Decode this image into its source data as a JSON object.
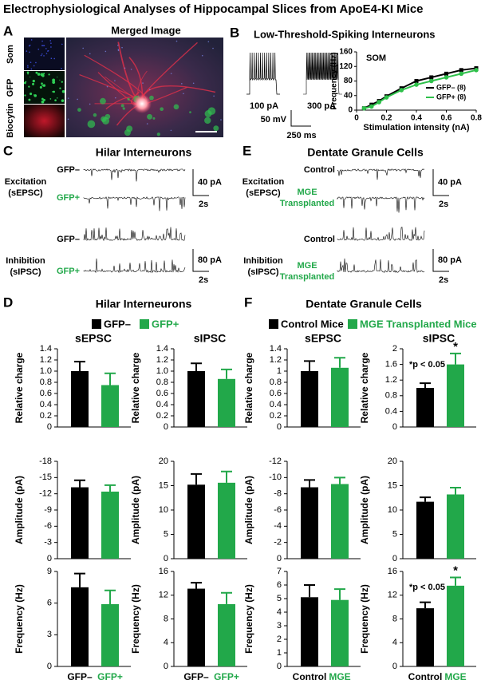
{
  "title": "Electrophysiological Analyses of Hippocampal Slices from ApoE4-KI Mice",
  "panels": {
    "A": {
      "label": "A",
      "image_title": "Merged Image",
      "channels": [
        "Som",
        "GFP",
        "Biocytin"
      ]
    },
    "B": {
      "label": "B",
      "title": "Low-Threshold-Spiking Interneurons",
      "traces": [
        "100 pA",
        "300 pA"
      ],
      "scale": [
        "50 mV",
        "250 ms"
      ]
    },
    "C": {
      "label": "C",
      "title": "Hilar Interneurons",
      "label_colors": [
        "#000000",
        "#22a84a"
      ],
      "rows": [
        {
          "group": [
            "Excitation",
            "(sEPSC)"
          ],
          "traces": [
            [
              "GFP–"
            ],
            [
              "GFP+"
            ]
          ],
          "scale": [
            "40 pA",
            "2s"
          ]
        },
        {
          "group": [
            "Inhibition",
            "(sIPSC)"
          ],
          "traces": [
            [
              "GFP–"
            ],
            [
              "GFP+"
            ]
          ],
          "scale": [
            "80 pA",
            "2s"
          ]
        }
      ]
    },
    "E": {
      "label": "E",
      "title": "Dentate Granule Cells",
      "label_colors": [
        "#000000",
        "#22a84a"
      ],
      "rows": [
        {
          "group": [
            "Excitation",
            "(sEPSC)"
          ],
          "traces": [
            [
              "Control"
            ],
            [
              "MGE",
              "Transplanted"
            ]
          ],
          "scale": [
            "40 pA",
            "2s"
          ]
        },
        {
          "group": [
            "Inhibition",
            "(sIPSC)"
          ],
          "traces": [
            [
              "Control"
            ],
            [
              "MGE",
              "Transplanted"
            ]
          ],
          "scale": [
            "80 pA",
            "2s"
          ]
        }
      ]
    },
    "D": {
      "label": "D",
      "title": "Hilar Interneurons",
      "legend": [
        {
          "name": "GFP–",
          "color": "#000000"
        },
        {
          "name": "GFP+",
          "color": "#22a84a"
        }
      ]
    },
    "F": {
      "label": "F",
      "title": "Dentate Granule Cells",
      "legend": [
        {
          "name": "Control Mice",
          "color": "#000000"
        },
        {
          "name": "MGE Transplanted Mice",
          "color": "#22a84a"
        }
      ]
    }
  },
  "chart_data": [
    {
      "type": "line",
      "title": "SOM",
      "xlabel": "Stimulation intensity (nA)",
      "ylabel": "Frequency (Hz)",
      "x": [
        0.05,
        0.1,
        0.15,
        0.2,
        0.3,
        0.4,
        0.5,
        0.6,
        0.7,
        0.8
      ],
      "series": [
        {
          "name": "GFP– (8)",
          "color": "#000000",
          "marker": "square",
          "values": [
            5,
            15,
            25,
            38,
            60,
            80,
            90,
            100,
            110,
            115
          ]
        },
        {
          "name": "GFP+ (8)",
          "color": "#2ec04a",
          "marker": "circle",
          "values": [
            5,
            10,
            22,
            35,
            55,
            70,
            80,
            90,
            100,
            110
          ]
        }
      ],
      "xlim": [
        0,
        0.8
      ],
      "xticks": [
        0,
        0.2,
        0.4,
        0.6,
        0.8
      ],
      "ylim": [
        0,
        160
      ],
      "yticks": [
        0,
        40,
        80,
        120,
        160
      ],
      "legend": "lower right"
    },
    {
      "type": "bar",
      "title": "sEPSC",
      "ylabel": "Relative charge",
      "values": [
        1.0,
        0.75
      ],
      "errors": [
        0.17,
        0.21
      ],
      "colors": [
        "#000000",
        "#22a84a"
      ],
      "ylim": [
        0,
        1.4
      ],
      "yticks": [
        0,
        0.2,
        0.4,
        0.6,
        0.8,
        {
          "value": 1,
          "label": "1.0"
        },
        1.2,
        1.4
      ]
    },
    {
      "type": "bar",
      "title": "sIPSC",
      "ylabel": "Relative charge",
      "values": [
        1.0,
        0.86
      ],
      "errors": [
        0.14,
        0.17
      ],
      "colors": [
        "#000000",
        "#22a84a"
      ],
      "ylim": [
        0,
        1.4
      ],
      "yticks": [
        0,
        0.2,
        0.4,
        0.6,
        0.8,
        {
          "value": 1,
          "label": "1.0"
        },
        1.2,
        1.4
      ]
    },
    {
      "type": "bar",
      "ylabel": "Amplitude (pA)",
      "values": [
        -13.2,
        -12.4
      ],
      "errors": [
        1.3,
        1.2
      ],
      "colors": [
        "#000000",
        "#22a84a"
      ],
      "ylim": [
        0,
        -18
      ],
      "yticks": [
        0,
        -3,
        -6,
        -9,
        -12,
        -15,
        -18
      ]
    },
    {
      "type": "bar",
      "ylabel": "Amplitude (pA)",
      "values": [
        15.2,
        15.6
      ],
      "errors": [
        2.2,
        2.3
      ],
      "colors": [
        "#000000",
        "#22a84a"
      ],
      "ylim": [
        0,
        20
      ],
      "yticks": [
        0,
        5,
        10,
        15,
        20
      ]
    },
    {
      "type": "bar",
      "ylabel": "Frequency (Hz)",
      "categories": [
        "GFP–",
        "GFP+"
      ],
      "values": [
        7.5,
        5.9
      ],
      "errors": [
        1.3,
        1.3
      ],
      "colors": [
        "#000000",
        "#22a84a"
      ],
      "ylim": [
        0,
        9
      ],
      "yticks": [
        0,
        3,
        6,
        9
      ]
    },
    {
      "type": "bar",
      "ylabel": "Frequency (Hz)",
      "categories": [
        "GFP–",
        "GFP+"
      ],
      "values": [
        13.1,
        10.5
      ],
      "errors": [
        1.0,
        1.9
      ],
      "colors": [
        "#000000",
        "#22a84a"
      ],
      "ylim": [
        0,
        16
      ],
      "yticks": [
        0,
        4,
        8,
        12,
        16
      ]
    },
    {
      "type": "bar",
      "title": "sEPSC",
      "ylabel": "Relative charge",
      "values": [
        1.0,
        1.06
      ],
      "errors": [
        0.18,
        0.18
      ],
      "colors": [
        "#000000",
        "#22a84a"
      ],
      "ylim": [
        0,
        1.4
      ],
      "yticks": [
        0,
        0.2,
        0.4,
        0.6,
        0.8,
        1,
        1.2,
        1.4
      ]
    },
    {
      "type": "bar",
      "title": "sIPSC",
      "ylabel": "Relative charge",
      "values": [
        1.0,
        1.6
      ],
      "errors": [
        0.12,
        0.28
      ],
      "colors": [
        "#000000",
        "#22a84a"
      ],
      "ylim": [
        0,
        2
      ],
      "yticks": [
        0,
        0.4,
        0.8,
        1.2,
        1.6,
        2
      ],
      "annotation": "*p < 0.05",
      "significance_label": "*"
    },
    {
      "type": "bar",
      "ylabel": "Amplitude (pA)",
      "values": [
        -8.8,
        -9.2
      ],
      "errors": [
        0.9,
        0.8
      ],
      "colors": [
        "#000000",
        "#22a84a"
      ],
      "ylim": [
        0,
        -12
      ],
      "yticks": [
        0,
        -2,
        -4,
        -6,
        -8,
        -10,
        -12
      ]
    },
    {
      "type": "bar",
      "ylabel": "Amplitude (pA)",
      "values": [
        11.7,
        13.2
      ],
      "errors": [
        0.9,
        1.4
      ],
      "colors": [
        "#000000",
        "#22a84a"
      ],
      "ylim": [
        0,
        20
      ],
      "yticks": [
        0,
        5,
        10,
        15,
        20
      ]
    },
    {
      "type": "bar",
      "ylabel": "Frequency (Hz)",
      "categories": [
        "Control",
        "MGE"
      ],
      "values": [
        5.1,
        4.9
      ],
      "errors": [
        0.9,
        0.8
      ],
      "colors": [
        "#000000",
        "#22a84a"
      ],
      "ylim": [
        0,
        7
      ],
      "yticks": [
        0,
        1,
        2,
        3,
        4,
        5,
        6,
        7
      ]
    },
    {
      "type": "bar",
      "ylabel": "Frequency (Hz)",
      "categories": [
        "Control",
        "MGE"
      ],
      "values": [
        9.8,
        13.6
      ],
      "errors": [
        1.0,
        1.4
      ],
      "colors": [
        "#000000",
        "#22a84a"
      ],
      "ylim": [
        0,
        16
      ],
      "yticks": [
        0,
        4,
        8,
        12,
        16
      ],
      "annotation": "*p < 0.05",
      "significance_label": "*"
    }
  ]
}
